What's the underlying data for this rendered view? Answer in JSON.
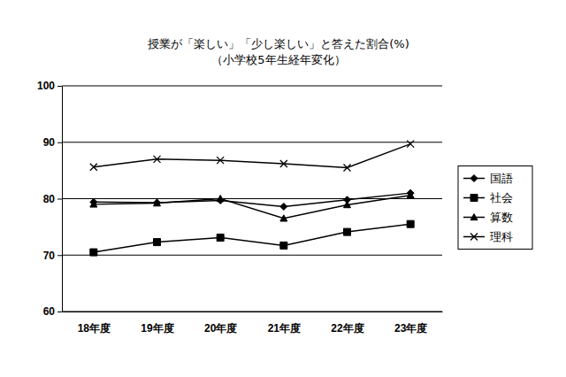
{
  "chart_data": {
    "type": "line",
    "title": "授業が「楽しい」「少し楽しい」と答えた割合(%)",
    "subtitle": "（小学校5年生経年変化）",
    "categories": [
      "18年度",
      "19年度",
      "20年度",
      "21年度",
      "22年度",
      "23年度"
    ],
    "series": [
      {
        "name": "国語",
        "color": "#000000",
        "marker": "diamond",
        "values": [
          79.4,
          79.3,
          79.7,
          78.6,
          79.8,
          81.0
        ]
      },
      {
        "name": "社会",
        "color": "#000000",
        "marker": "square",
        "values": [
          70.5,
          72.3,
          73.1,
          71.7,
          74.1,
          75.5
        ]
      },
      {
        "name": "算数",
        "color": "#000000",
        "marker": "triangle",
        "values": [
          79.0,
          79.2,
          80.0,
          76.5,
          78.9,
          80.6
        ]
      },
      {
        "name": "理科",
        "color": "#000000",
        "marker": "x",
        "values": [
          85.6,
          87.0,
          86.8,
          86.2,
          85.5,
          89.7
        ]
      }
    ],
    "ylim": [
      60,
      100
    ],
    "yticks": [
      60,
      70,
      80,
      90,
      100
    ],
    "grid": true,
    "legend": "right"
  }
}
